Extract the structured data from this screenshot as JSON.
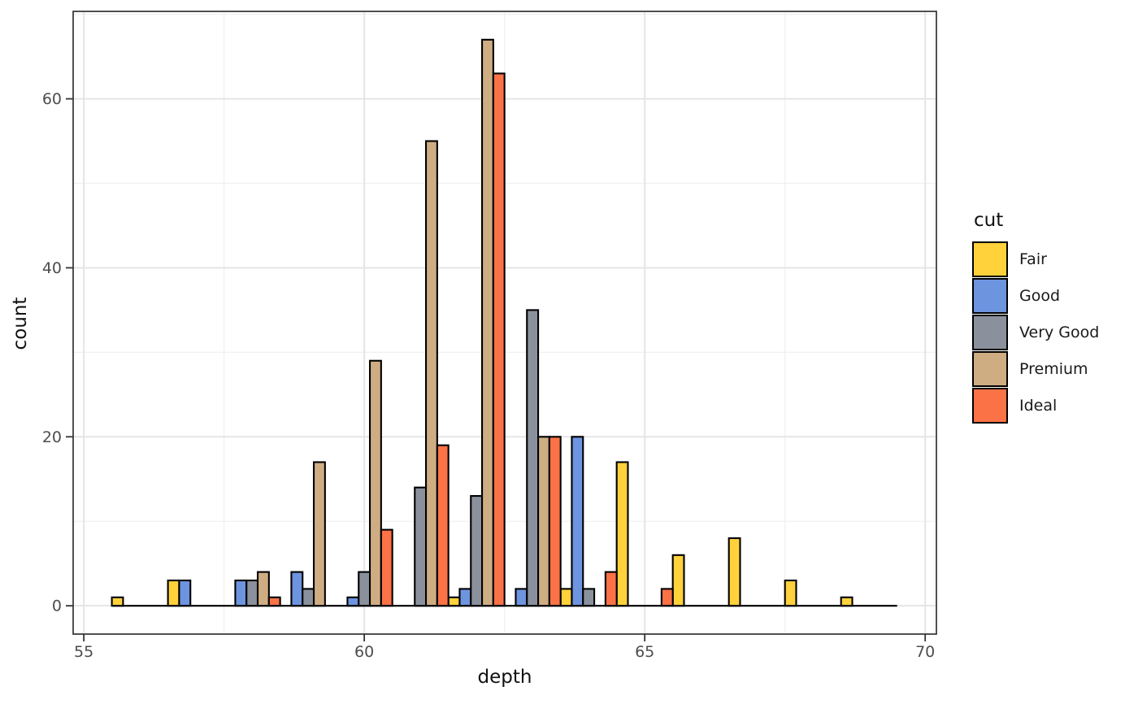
{
  "figure": {
    "xlabel": "depth",
    "ylabel": "count"
  },
  "chart_data": {
    "type": "bar",
    "subtype": "dodged-histogram",
    "title": "",
    "xlabel": "depth",
    "ylabel": "count",
    "bin_width": 1,
    "bar_width": 0.2,
    "categories": [
      56,
      57,
      58,
      59,
      60,
      61,
      62,
      63,
      64,
      65,
      66,
      67,
      68,
      69
    ],
    "series": [
      {
        "name": "Fair",
        "color": "#FFD13B",
        "values": [
          1,
          3,
          0,
          0,
          0,
          0,
          1,
          0,
          2,
          17,
          6,
          8,
          3,
          1
        ]
      },
      {
        "name": "Good",
        "color": "#6D94DF",
        "values": [
          0,
          3,
          3,
          4,
          1,
          0,
          2,
          2,
          20,
          0,
          0,
          0,
          0,
          0
        ]
      },
      {
        "name": "Very Good",
        "color": "#8B919C",
        "values": [
          0,
          0,
          3,
          2,
          4,
          14,
          13,
          35,
          2,
          0,
          0,
          0,
          0,
          0
        ]
      },
      {
        "name": "Premium",
        "color": "#CFAD83",
        "values": [
          0,
          0,
          4,
          17,
          29,
          55,
          67,
          20,
          0,
          0,
          0,
          0,
          0,
          0
        ]
      },
      {
        "name": "Ideal",
        "color": "#FB7246",
        "values": [
          0,
          0,
          1,
          0,
          9,
          19,
          63,
          20,
          4,
          2,
          0,
          0,
          0,
          0
        ]
      }
    ],
    "x_ticks": [
      55,
      60,
      65,
      70
    ],
    "y_ticks": [
      0,
      20,
      40,
      60
    ],
    "x_minor_gridlines": [
      57.5,
      62.5,
      67.5
    ],
    "y_minor_gridlines": [
      10,
      30,
      50,
      70
    ],
    "xlim": [
      54.81,
      70.2
    ],
    "ylim": [
      -3.35,
      70.35
    ],
    "baseline_extent": [
      55.5,
      69.5
    ],
    "grid": true,
    "legend": {
      "title": "cut",
      "position": "right"
    },
    "colors": {
      "bar_outline": "#000000",
      "panel_border": "#333333",
      "panel_background": "#FFFFFF",
      "grid_major": "#E5E5E5",
      "grid_minor": "#F0F0F0",
      "tick_mark": "#333333",
      "tick_label": "#4D4D4D",
      "axis_title": "#111111"
    }
  }
}
